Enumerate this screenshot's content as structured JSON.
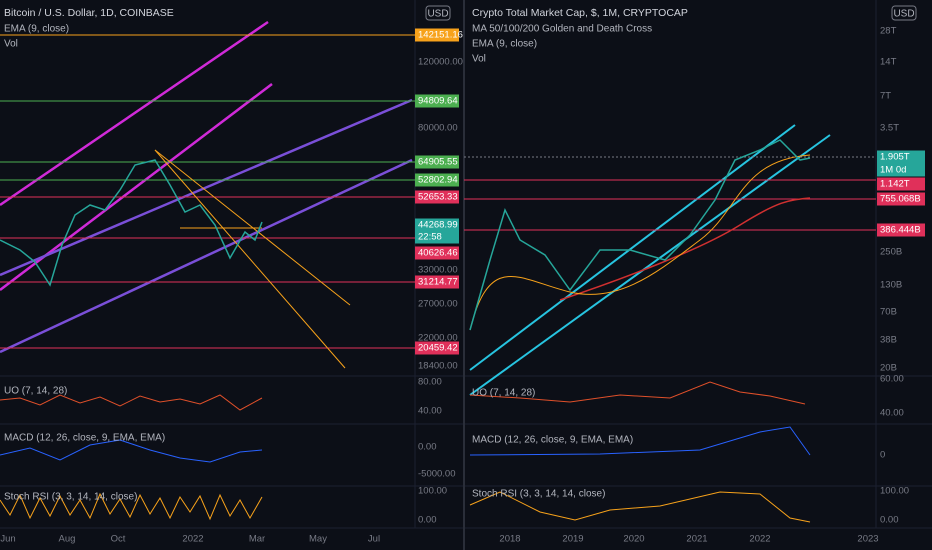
{
  "left_pane": {
    "title": "Bitcoin / U.S. Dollar, 1D, COINBASE",
    "currency": "USD",
    "indicators": [
      "EMA (9, close)",
      "Vol"
    ],
    "price_scale": [
      "120000.00",
      "80000.00",
      "33000.00",
      "27000.00",
      "22000.00",
      "18400.00"
    ],
    "price_labels": [
      "142151.16",
      "94809.64",
      "64905.55",
      "52802.94",
      "52653.33",
      "44268.99",
      "22:58",
      "40626.46",
      "31214.77",
      "20459.42"
    ],
    "oscillators": [
      "UO (7, 14, 28)",
      "MACD (12, 26, close, 9, EMA, EMA)",
      "Stoch RSI (3, 3, 14, 14, close)"
    ],
    "oscillator_scale": [
      "80.00",
      "40.00",
      "0.00",
      "-5000.00",
      "100.00",
      "0.00"
    ],
    "time_axis": [
      "Jun",
      "Aug",
      "Oct",
      "2022",
      "Mar",
      "May",
      "Jul"
    ]
  },
  "right_pane": {
    "title": "Crypto Total Market Cap, $, 1M, CRYPTOCAP",
    "currency": "USD",
    "indicators": [
      "MA 50/100/200 Golden and Death Cross",
      "EMA (9, close)",
      "Vol"
    ],
    "price_scale": [
      "28T",
      "14T",
      "7T",
      "3.5T",
      "250B",
      "130B",
      "70B",
      "38B",
      "20B"
    ],
    "price_labels": [
      "1.905T",
      "1M 0d",
      "1.142T",
      "755.068B",
      "386.444B"
    ],
    "oscillators": [
      "UO (7, 14, 28)",
      "MACD (12, 26, close, 9, EMA, EMA)",
      "Stoch RSI (3, 3, 14, 14, close)"
    ],
    "oscillator_scale": [
      "60.00",
      "40.00",
      "0",
      "100.00",
      "0.00"
    ],
    "time_axis": [
      "2018",
      "2019",
      "2020",
      "2021",
      "2022",
      "2023"
    ]
  }
}
